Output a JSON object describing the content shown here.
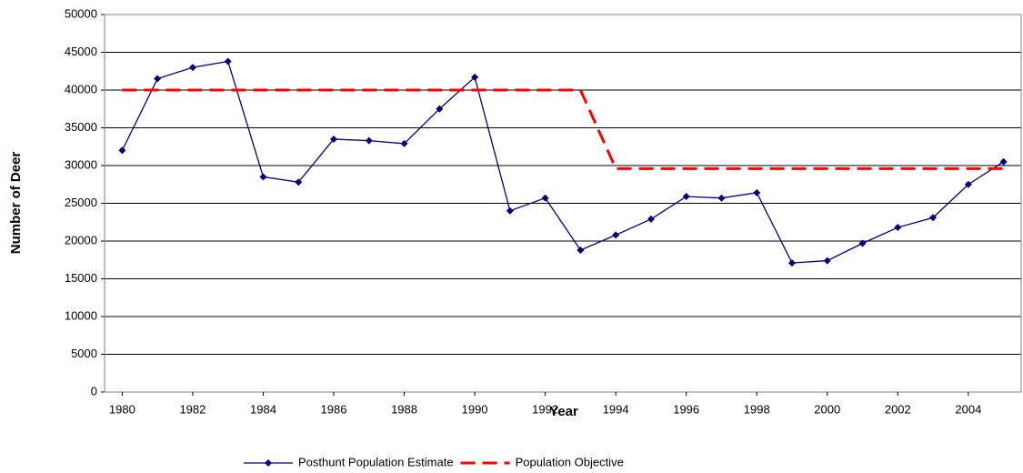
{
  "chart_data": {
    "type": "line",
    "x_label": "Year",
    "y_label": "Number of Deer",
    "x": [
      1980,
      1981,
      1982,
      1983,
      1984,
      1985,
      1986,
      1987,
      1988,
      1989,
      1990,
      1991,
      1992,
      1993,
      1994,
      1995,
      1996,
      1997,
      1998,
      1999,
      2000,
      2001,
      2002,
      2003,
      2004,
      2005
    ],
    "series": [
      {
        "name": "Posthunt Population Estimate",
        "color": "#000080",
        "style": "solid",
        "marker": "diamond",
        "values": [
          32000,
          41500,
          43000,
          43800,
          28500,
          27800,
          33500,
          33300,
          32900,
          37500,
          41700,
          24000,
          25700,
          18800,
          20800,
          22900,
          25900,
          25700,
          26400,
          17100,
          17400,
          19700,
          21800,
          23100,
          27500,
          30500
        ]
      },
      {
        "name": "Population Objective",
        "color": "#ff0000",
        "style": "dashed",
        "marker": "none",
        "values": [
          40000,
          40000,
          40000,
          40000,
          40000,
          40000,
          40000,
          40000,
          40000,
          40000,
          40000,
          40000,
          40000,
          40000,
          29600,
          29600,
          29600,
          29600,
          29600,
          29600,
          29600,
          29600,
          29600,
          29600,
          29600,
          29600
        ]
      }
    ],
    "xlim": [
      1979.5,
      2005.5
    ],
    "xticks": [
      1980,
      1982,
      1984,
      1986,
      1988,
      1990,
      1992,
      1994,
      1996,
      1998,
      2000,
      2002,
      2004
    ],
    "ylim": [
      0,
      50000
    ],
    "yticks": [
      0,
      5000,
      10000,
      15000,
      20000,
      25000,
      30000,
      35000,
      40000,
      45000,
      50000
    ],
    "grid": true,
    "legend": "bottom"
  }
}
